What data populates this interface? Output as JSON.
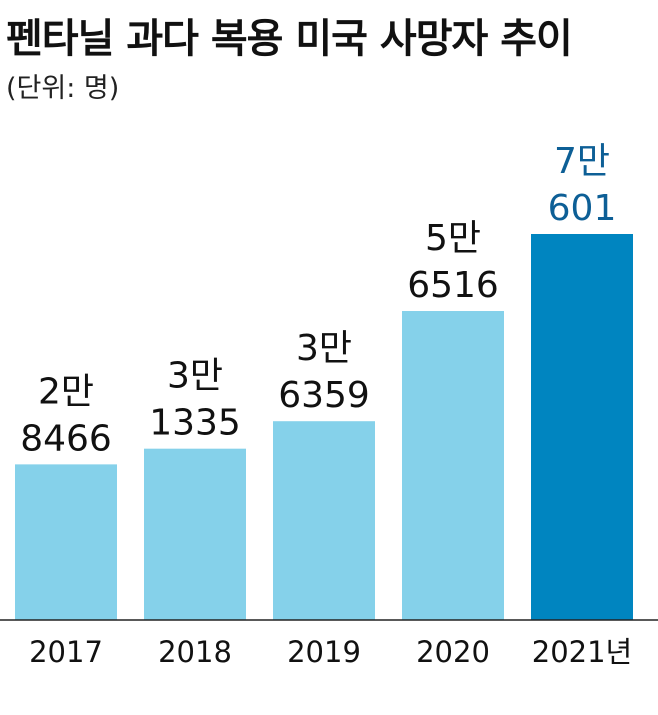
{
  "chart_data": {
    "type": "bar",
    "title": "펜타닐 과다 복용 미국 사망자 추이",
    "subtitle": "(단위: 명)",
    "categories": [
      "2017",
      "2018",
      "2019",
      "2020",
      "2021년"
    ],
    "values": [
      28466,
      31335,
      36359,
      56516,
      70601
    ],
    "value_labels": [
      [
        "2만",
        "8466"
      ],
      [
        "3만",
        "1335"
      ],
      [
        "3만",
        "6359"
      ],
      [
        "5만",
        "6516"
      ],
      [
        "7만",
        "601"
      ]
    ],
    "xlabel": "",
    "ylabel": "",
    "ylim": [
      0,
      70601
    ],
    "grid": false,
    "legend": "none",
    "colors": {
      "bar": "#85d1ea",
      "highlight_bar": "#0085c0",
      "label": "#111111",
      "highlight_label": "#0d5f96",
      "baseline": "#222222"
    },
    "highlight_index": 4
  }
}
